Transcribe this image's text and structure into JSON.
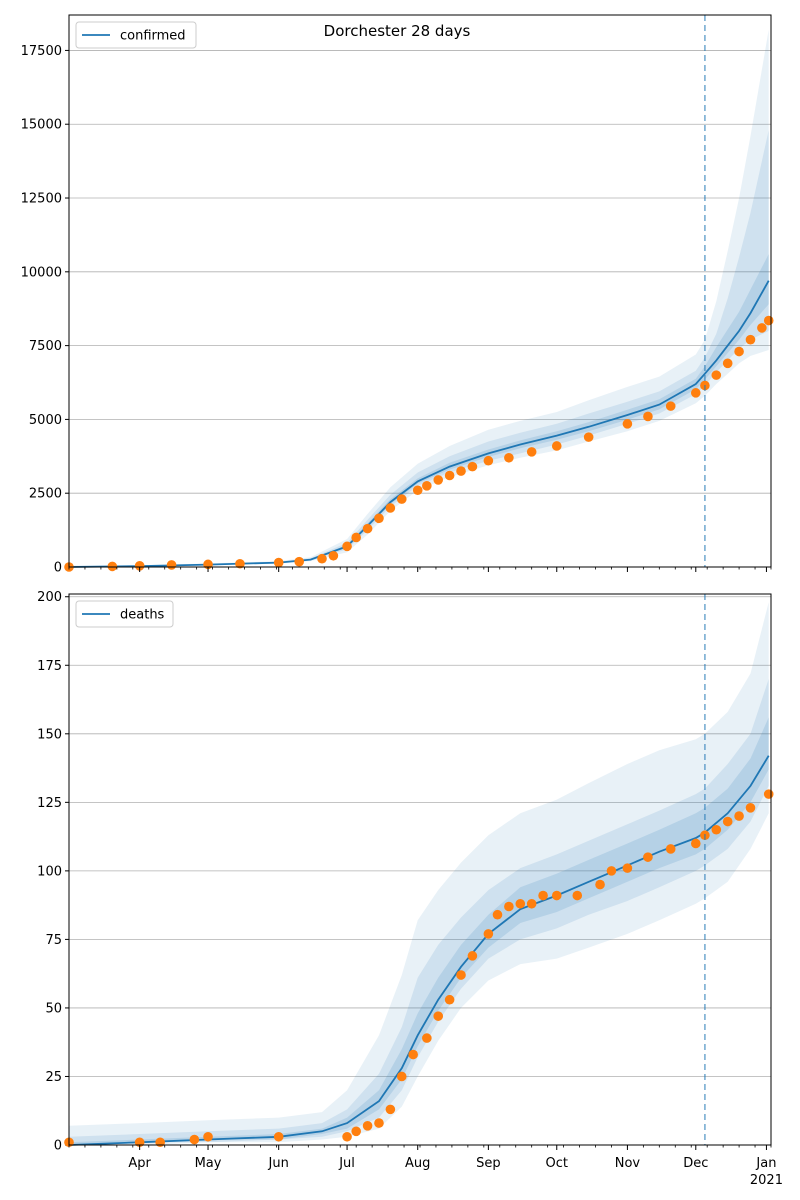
{
  "figure": {
    "title": "Dorchester 28 days"
  },
  "colors": {
    "model_line": "#1f77b4",
    "band": "#1f77b4",
    "observed": "#ff7f0e",
    "vline": "#1f77b4",
    "grid": "#b0b0b0",
    "axis": "#000000"
  },
  "chart_data": [
    {
      "type": "line",
      "legend": "confirmed",
      "legend_location": "upper left",
      "ylim": [
        0,
        18700
      ],
      "yticks": [
        0,
        2500,
        5000,
        7500,
        10000,
        12500,
        15000,
        17500
      ],
      "ytick_labels": [
        "0",
        "2500",
        "5000",
        "7500",
        "10000",
        "12500",
        "15000",
        "17500"
      ],
      "grid": "horizontal",
      "forecast_start": "2020-12-05",
      "model": {
        "name": "confirmed",
        "x": [
          "2020-03-01",
          "2020-04-01",
          "2020-05-01",
          "2020-06-01",
          "2020-06-15",
          "2020-07-01",
          "2020-07-10",
          "2020-07-20",
          "2020-08-01",
          "2020-08-15",
          "2020-09-01",
          "2020-09-15",
          "2020-10-01",
          "2020-10-15",
          "2020-11-01",
          "2020-11-15",
          "2020-12-01",
          "2020-12-05",
          "2020-12-10",
          "2020-12-15",
          "2020-12-20",
          "2020-12-25",
          "2021-01-02"
        ],
        "y": [
          0,
          30,
          80,
          150,
          250,
          700,
          1400,
          2200,
          2900,
          3400,
          3850,
          4150,
          4450,
          4750,
          5150,
          5500,
          6200,
          6550,
          7000,
          7500,
          8000,
          8600,
          9700
        ]
      },
      "bands": [
        {
          "level": "outer",
          "lower": [
            0,
            20,
            60,
            120,
            200,
            500,
            1100,
            1900,
            2600,
            3050,
            3450,
            3700,
            3950,
            4250,
            4600,
            4950,
            5550,
            5800,
            6200,
            6550,
            6900,
            7150,
            7350
          ],
          "upper": [
            50,
            60,
            120,
            200,
            330,
            950,
            1800,
            2700,
            3500,
            4100,
            4650,
            4950,
            5250,
            5650,
            6100,
            6450,
            7200,
            7700,
            9000,
            10700,
            12500,
            14600,
            18200
          ]
        },
        {
          "level": "middle",
          "lower": [
            0,
            25,
            70,
            135,
            225,
            600,
            1250,
            2050,
            2750,
            3200,
            3600,
            3850,
            4150,
            4450,
            4850,
            5200,
            5850,
            6150,
            6600,
            7000,
            7400,
            7700,
            8000
          ],
          "upper": [
            30,
            45,
            100,
            175,
            290,
            820,
            1600,
            2450,
            3200,
            3750,
            4250,
            4550,
            4850,
            5200,
            5600,
            5950,
            6650,
            7100,
            7900,
            9100,
            10500,
            12000,
            14800
          ]
        },
        {
          "level": "inner",
          "lower": [
            0,
            28,
            75,
            143,
            238,
            650,
            1330,
            2130,
            2830,
            3300,
            3730,
            4020,
            4310,
            4600,
            4990,
            5340,
            6020,
            6350,
            6800,
            7250,
            7700,
            8200,
            8900
          ],
          "upper": [
            15,
            35,
            88,
            160,
            265,
            760,
            1480,
            2300,
            3000,
            3530,
            3980,
            4290,
            4600,
            4910,
            5330,
            5680,
            6380,
            6800,
            7450,
            8050,
            8650,
            9400,
            10600
          ]
        }
      ],
      "observed": {
        "x": [
          "2020-03-01",
          "2020-03-20",
          "2020-04-01",
          "2020-04-15",
          "2020-05-01",
          "2020-05-15",
          "2020-06-01",
          "2020-06-10",
          "2020-06-20",
          "2020-06-25",
          "2020-07-01",
          "2020-07-05",
          "2020-07-10",
          "2020-07-15",
          "2020-07-20",
          "2020-07-25",
          "2020-08-01",
          "2020-08-05",
          "2020-08-10",
          "2020-08-15",
          "2020-08-20",
          "2020-08-25",
          "2020-09-01",
          "2020-09-10",
          "2020-09-20",
          "2020-10-01",
          "2020-10-15",
          "2020-11-01",
          "2020-11-10",
          "2020-11-20",
          "2020-12-01",
          "2020-12-05",
          "2020-12-10",
          "2020-12-15",
          "2020-12-20",
          "2020-12-25",
          "2020-12-30",
          "2021-01-02"
        ],
        "y": [
          0,
          20,
          40,
          70,
          90,
          110,
          150,
          180,
          280,
          380,
          700,
          1000,
          1300,
          1650,
          2000,
          2300,
          2600,
          2750,
          2950,
          3100,
          3250,
          3400,
          3600,
          3700,
          3900,
          4100,
          4400,
          4850,
          5100,
          5450,
          5900,
          6150,
          6500,
          6900,
          7300,
          7700,
          8100,
          8350
        ]
      },
      "x_ticks": [
        "Apr",
        "May",
        "Jun",
        "Jul",
        "Aug",
        "Sep",
        "Oct",
        "Nov",
        "Dec",
        "Jan"
      ],
      "x_tick_sublabel": "2021"
    },
    {
      "type": "line",
      "legend": "deaths",
      "legend_location": "upper left",
      "ylim": [
        0,
        201
      ],
      "yticks": [
        0,
        25,
        50,
        75,
        100,
        125,
        150,
        175,
        200
      ],
      "ytick_labels": [
        "0",
        "25",
        "50",
        "75",
        "100",
        "125",
        "150",
        "175",
        "200"
      ],
      "grid": "horizontal",
      "forecast_start": "2020-12-05",
      "model": {
        "name": "deaths",
        "x": [
          "2020-03-01",
          "2020-04-01",
          "2020-05-01",
          "2020-06-01",
          "2020-06-20",
          "2020-07-01",
          "2020-07-15",
          "2020-07-25",
          "2020-08-01",
          "2020-08-10",
          "2020-08-20",
          "2020-09-01",
          "2020-09-15",
          "2020-10-01",
          "2020-10-15",
          "2020-11-01",
          "2020-11-15",
          "2020-12-01",
          "2020-12-05",
          "2020-12-15",
          "2020-12-25",
          "2021-01-02"
        ],
        "y": [
          0,
          1,
          2,
          3,
          5,
          8,
          16,
          28,
          40,
          53,
          65,
          77,
          86,
          91,
          96,
          102,
          107,
          112,
          114,
          121,
          131,
          142
        ]
      },
      "bands": [
        {
          "level": "outer",
          "lower": [
            0,
            0,
            1,
            1,
            2,
            3,
            6,
            14,
            25,
            38,
            50,
            60,
            66,
            68,
            72,
            77,
            82,
            88,
            90,
            96,
            108,
            121
          ],
          "upper": [
            7,
            8,
            9,
            10,
            12,
            20,
            40,
            62,
            82,
            93,
            103,
            113,
            121,
            126,
            132,
            139,
            144,
            148,
            150,
            158,
            172,
            198
          ]
        },
        {
          "level": "middle",
          "lower": [
            0,
            1,
            1,
            2,
            3,
            5,
            10,
            20,
            32,
            45,
            57,
            68,
            75,
            79,
            84,
            89,
            94,
            100,
            102,
            108,
            118,
            131
          ],
          "upper": [
            3,
            4,
            5,
            6,
            8,
            13,
            26,
            43,
            61,
            73,
            83,
            93,
            101,
            106,
            111,
            117,
            122,
            128,
            130,
            139,
            150,
            170
          ]
        },
        {
          "level": "inner",
          "lower": [
            0,
            1,
            2,
            2,
            4,
            6,
            13,
            24,
            36,
            49,
            61,
            72,
            81,
            85,
            90,
            96,
            101,
            106,
            108,
            115,
            125,
            137
          ],
          "upper": [
            1,
            2,
            3,
            4,
            6,
            10,
            20,
            35,
            48,
            61,
            73,
            84,
            94,
            99,
            104,
            110,
            115,
            121,
            123,
            130,
            141,
            156
          ]
        }
      ],
      "observed": {
        "x": [
          "2020-03-01",
          "2020-04-01",
          "2020-04-10",
          "2020-04-25",
          "2020-05-01",
          "2020-06-01",
          "2020-07-01",
          "2020-07-05",
          "2020-07-10",
          "2020-07-15",
          "2020-07-20",
          "2020-07-25",
          "2020-07-30",
          "2020-08-05",
          "2020-08-10",
          "2020-08-15",
          "2020-08-20",
          "2020-08-25",
          "2020-09-01",
          "2020-09-05",
          "2020-09-10",
          "2020-09-15",
          "2020-09-20",
          "2020-09-25",
          "2020-10-01",
          "2020-10-10",
          "2020-10-20",
          "2020-10-25",
          "2020-11-01",
          "2020-11-10",
          "2020-11-20",
          "2020-12-01",
          "2020-12-05",
          "2020-12-10",
          "2020-12-15",
          "2020-12-20",
          "2020-12-25",
          "2021-01-02"
        ],
        "y": [
          1,
          1,
          1,
          2,
          3,
          3,
          3,
          5,
          7,
          8,
          13,
          25,
          33,
          39,
          47,
          53,
          62,
          69,
          77,
          84,
          87,
          88,
          88,
          91,
          91,
          91,
          95,
          100,
          101,
          105,
          108,
          110,
          113,
          115,
          118,
          120,
          123,
          128
        ]
      },
      "x_ticks": [
        "Apr",
        "May",
        "Jun",
        "Jul",
        "Aug",
        "Sep",
        "Oct",
        "Nov",
        "Dec",
        "Jan"
      ],
      "x_tick_sublabel": "2021"
    }
  ]
}
